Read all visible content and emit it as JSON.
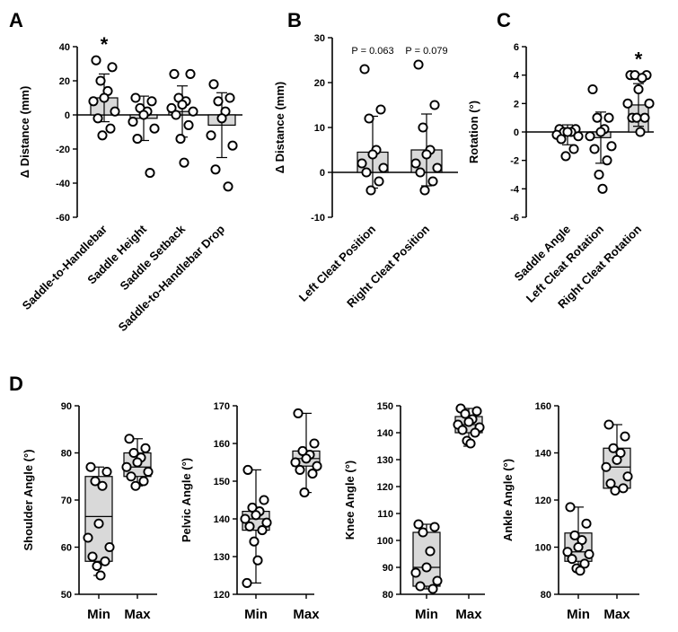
{
  "figure": {
    "panel_letters": [
      "A",
      "B",
      "C",
      "D"
    ]
  },
  "colors": {
    "bar_fill": "#d9d9d9",
    "stroke": "#000000",
    "point_fill": "#ffffff"
  },
  "chart_data": [
    {
      "id": "A",
      "type": "bar",
      "ylabel": "Δ Distance (mm)",
      "ylim": [
        -60,
        40
      ],
      "yticks": [
        -60,
        -40,
        -20,
        0,
        20,
        40
      ],
      "categories": [
        "Saddle-to-Handlebar",
        "Saddle Height",
        "Saddle Setback",
        "Saddle-to-Handlebar Drop"
      ],
      "means": [
        10,
        -2,
        2,
        -6
      ],
      "sd": [
        14,
        13,
        15,
        19
      ],
      "points": [
        [
          32,
          28,
          20,
          14,
          10,
          8,
          2,
          -2,
          -8,
          -12
        ],
        [
          10,
          8,
          4,
          2,
          0,
          -4,
          -8,
          -14,
          -34
        ],
        [
          24,
          24,
          10,
          8,
          6,
          4,
          2,
          0,
          -6,
          -14,
          -28
        ],
        [
          18,
          10,
          8,
          2,
          -2,
          -12,
          -18,
          -32,
          -42
        ]
      ],
      "annotations": [
        {
          "category": 0,
          "text": "*"
        }
      ]
    },
    {
      "id": "B",
      "type": "bar",
      "ylabel": "Δ Distance (mm)",
      "ylim": [
        -10,
        30
      ],
      "yticks": [
        -10,
        0,
        10,
        20,
        30
      ],
      "categories": [
        "Left Cleat Position",
        "Right Cleat Position"
      ],
      "means": [
        4.5,
        5
      ],
      "sd": [
        8,
        8
      ],
      "points": [
        [
          23,
          14,
          12,
          5,
          4,
          2,
          1,
          0,
          -2,
          -4
        ],
        [
          24,
          15,
          10,
          5,
          4,
          2,
          1,
          0,
          -2,
          -4
        ]
      ],
      "annotations": [
        {
          "category": 0,
          "text": "P = 0.063"
        },
        {
          "category": 1,
          "text": "P = 0.079"
        }
      ]
    },
    {
      "id": "C",
      "type": "bar",
      "ylabel": "Rotation (°)",
      "ylim": [
        -6,
        6
      ],
      "yticks": [
        -6,
        -4,
        -2,
        0,
        2,
        4,
        6
      ],
      "categories": [
        "Saddle Angle",
        "Left Cleat Rotation",
        "Right Cleat Rotation"
      ],
      "means": [
        -0.2,
        -0.4,
        1.9
      ],
      "sd": [
        0.7,
        1.8,
        1.5
      ],
      "points": [
        [
          0.2,
          0.2,
          0,
          0,
          0,
          -0.2,
          -0.3,
          -0.5,
          -1.2,
          -1.7
        ],
        [
          3,
          1,
          1,
          0.2,
          0,
          -0.3,
          -1,
          -1.2,
          -2,
          -3,
          -4
        ],
        [
          4,
          4,
          4,
          3.8,
          3,
          2,
          2,
          1,
          1,
          1,
          0
        ]
      ],
      "annotations": [
        {
          "category": 2,
          "text": "*"
        }
      ]
    },
    {
      "id": "D1",
      "type": "box",
      "ylabel": "Shoulder Angle (°)",
      "ylim": [
        50,
        90
      ],
      "yticks": [
        50,
        60,
        70,
        80,
        90
      ],
      "categories": [
        "Min",
        "Max"
      ],
      "boxes": [
        {
          "min": 54,
          "q1": 57,
          "median": 66.5,
          "q3": 75,
          "max": 77
        },
        {
          "min": 73,
          "q1": 75,
          "median": 77,
          "q3": 80,
          "max": 83
        }
      ],
      "points": [
        [
          77,
          76,
          74,
          73,
          65,
          62,
          60,
          58,
          57,
          56,
          54
        ],
        [
          83,
          81,
          80,
          79,
          78,
          77,
          76,
          75,
          74,
          73
        ]
      ]
    },
    {
      "id": "D2",
      "type": "box",
      "ylabel": "Pelvic Angle (°)",
      "ylim": [
        120,
        170
      ],
      "yticks": [
        120,
        130,
        140,
        150,
        160,
        170
      ],
      "categories": [
        "Min",
        "Max"
      ],
      "boxes": [
        {
          "min": 123,
          "q1": 137,
          "median": 140,
          "q3": 142,
          "max": 153
        },
        {
          "min": 147,
          "q1": 154,
          "median": 156,
          "q3": 158,
          "max": 168
        }
      ],
      "points": [
        [
          153,
          145,
          143,
          142,
          141,
          140,
          139,
          138,
          137,
          134,
          129,
          123
        ],
        [
          168,
          160,
          158,
          157,
          156,
          155,
          154,
          153,
          152,
          147
        ]
      ]
    },
    {
      "id": "D3",
      "type": "box",
      "ylabel": "Knee Angle (°)",
      "ylim": [
        80,
        150
      ],
      "yticks": [
        80,
        90,
        100,
        110,
        120,
        130,
        140,
        150
      ],
      "categories": [
        "Min",
        "Max"
      ],
      "boxes": [
        {
          "min": 82,
          "q1": 83,
          "median": 90,
          "q3": 103,
          "max": 106
        },
        {
          "min": 135,
          "q1": 140,
          "median": 143,
          "q3": 146,
          "max": 149
        }
      ],
      "points": [
        [
          106,
          105,
          103,
          96,
          90,
          88,
          85,
          83,
          82
        ],
        [
          149,
          148,
          147,
          145,
          144,
          143,
          142,
          141,
          140,
          137,
          136
        ]
      ]
    },
    {
      "id": "D4",
      "type": "box",
      "ylabel": "Ankle Angle (°)",
      "ylim": [
        80,
        160
      ],
      "yticks": [
        80,
        100,
        120,
        140,
        160
      ],
      "categories": [
        "Min",
        "Max"
      ],
      "boxes": [
        {
          "min": 90,
          "q1": 94,
          "median": 98,
          "q3": 106,
          "max": 117
        },
        {
          "min": 124,
          "q1": 125,
          "median": 134,
          "q3": 142,
          "max": 152
        }
      ],
      "points": [
        [
          117,
          110,
          105,
          103,
          100,
          98,
          97,
          95,
          93,
          91,
          90
        ],
        [
          152,
          147,
          142,
          140,
          137,
          134,
          130,
          127,
          125,
          124
        ]
      ]
    }
  ]
}
